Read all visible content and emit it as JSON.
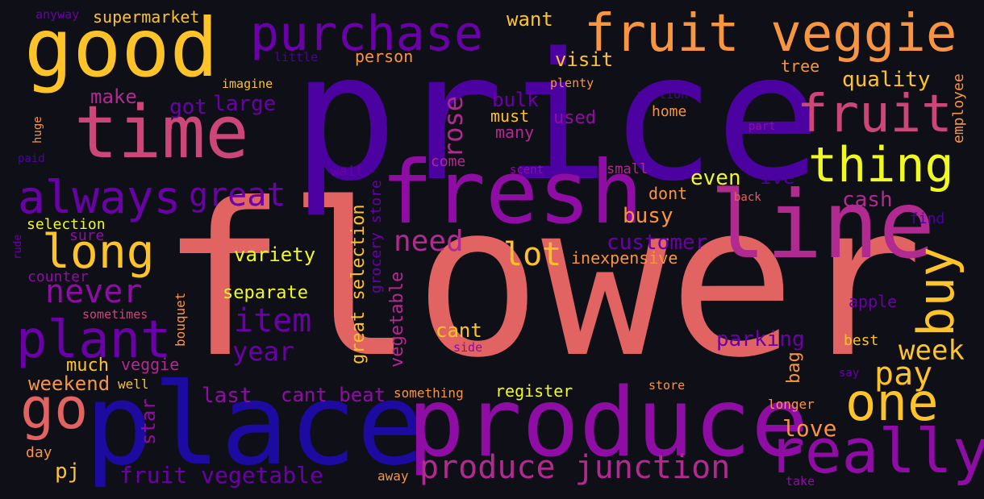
{
  "words": {
    "flower": "flower",
    "price": "price",
    "place": "place",
    "produce": "produce",
    "fresh": "fresh",
    "line": "line",
    "good": "good",
    "time": "time",
    "fruit_veggie": "fruit veggie",
    "purchase": "purchase",
    "fruit": "fruit",
    "really": "really",
    "produce_junction": "produce junction",
    "always": "always",
    "thing": "thing",
    "long": "long",
    "plant": "plant",
    "one": "one",
    "go": "go",
    "buy": "buy",
    "great": "great",
    "never": "never",
    "item": "item",
    "need": "need",
    "lot": "lot",
    "week": "week",
    "pay": "pay",
    "rose": "rose",
    "year": "year",
    "fruit_vegetable": "fruit vegetable",
    "customer": "customer",
    "parking": "parking",
    "cant_beat": "cant beat",
    "love": "love",
    "busy": "busy",
    "cash": "cash",
    "even": "even",
    "quality": "quality",
    "large": "large",
    "got": "got",
    "make": "make",
    "visit": "visit",
    "want": "want",
    "supermarket": "supermarket",
    "person": "person",
    "bulk": "bulk",
    "must": "must",
    "many": "many",
    "used": "used",
    "variety": "variety",
    "separate": "separate",
    "cant": "cant",
    "last": "last",
    "weekend": "weekend",
    "much": "much",
    "veggie": "veggie",
    "pj": "pj",
    "star": "star",
    "bag": "bag",
    "apple": "apple",
    "great_selection": "great selection",
    "vegetable": "vegetable",
    "grocery_store": "grocery store",
    "ive": "ive",
    "dont": "dont",
    "inexpensive": "inexpensive",
    "register": "register",
    "something": "something",
    "selection": "selection",
    "counter": "counter",
    "sure": "sure",
    "day": "day",
    "employee": "employee",
    "tree": "tree",
    "home": "home",
    "imagine": "imagine",
    "plenty": "plenty",
    "come": "come",
    "small": "small",
    "wait": "wait",
    "best": "best",
    "longer": "longer",
    "store": "store",
    "well": "well",
    "bouquet": "bouquet",
    "sometimes": "sometimes",
    "side": "side",
    "away": "away",
    "take": "take",
    "say": "say",
    "find": "find",
    "back": "back",
    "part": "part",
    "portion": "portion",
    "scent": "scent",
    "little": "little",
    "anyway": "anyway",
    "paid": "paid",
    "huge": "huge",
    "rude": "rude"
  }
}
